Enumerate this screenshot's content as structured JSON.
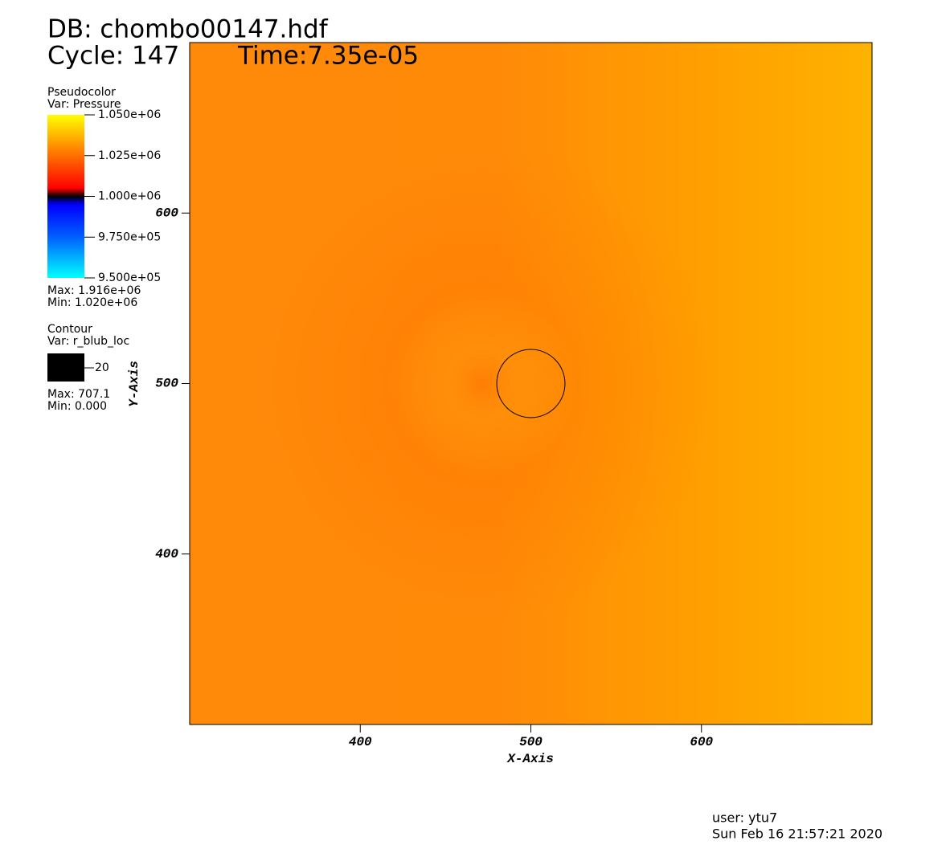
{
  "chart_data": {
    "type": "pseudocolor",
    "title": "DB: chombo00147.hdf",
    "cycle": "Cycle: 147",
    "time": "Time:7.35e-05",
    "x_label": "X-Axis",
    "y_label": "Y-Axis",
    "xlim": [
      300,
      700
    ],
    "ylim": [
      300,
      700
    ],
    "xticks": [
      400,
      500,
      600
    ],
    "yticks": [
      400,
      500,
      600
    ],
    "legend": {
      "title": "Pseudocolor",
      "var": "Var: Pressure",
      "range": [
        950000,
        1050000
      ],
      "ticks": [
        {
          "value": 1050000,
          "label": "1.050e+06"
        },
        {
          "value": 1025000,
          "label": "1.025e+06"
        },
        {
          "value": 1000000,
          "label": "1.000e+06"
        },
        {
          "value": 975000,
          "label": "9.750e+05"
        },
        {
          "value": 950000,
          "label": "9.500e+05"
        }
      ],
      "max": "Max:  1.916e+06",
      "min": "Min:  1.020e+06"
    },
    "contour": {
      "title": "Contour",
      "var": "Var: r_blub_loc",
      "level": 20,
      "center": [
        500,
        500
      ],
      "color": "#000000",
      "max": "Max: 707.1",
      "min": "Min: 0.000"
    },
    "user": "user: ytu7",
    "date": "Sun Feb 16 21:57:21 2020"
  }
}
